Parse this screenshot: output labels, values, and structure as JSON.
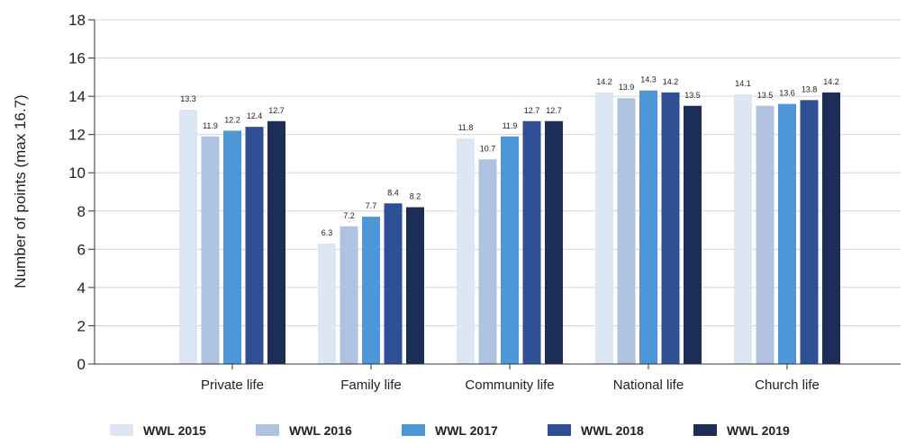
{
  "chart_data": {
    "type": "bar",
    "title": "",
    "xlabel": "",
    "ylabel": "Number of points (max 16.7)",
    "ylim": [
      0,
      18
    ],
    "yticks": [
      0,
      2,
      4,
      6,
      8,
      10,
      12,
      14,
      16,
      18
    ],
    "grid": true,
    "legend_position": "bottom",
    "categories": [
      "Private life",
      "Family life",
      "Community life",
      "National life",
      "Church life"
    ],
    "series": [
      {
        "name": "WWL 2015",
        "color": "#dce6f4",
        "values": [
          13.3,
          6.3,
          11.8,
          14.2,
          14.1
        ],
        "labels": [
          "13.3",
          "6.3",
          "11.8",
          "14.2",
          "14.1"
        ]
      },
      {
        "name": "WWL 2016",
        "color": "#afc3e1",
        "values": [
          11.9,
          7.2,
          10.7,
          13.9,
          13.5
        ],
        "labels": [
          "11.9",
          "7.2",
          "10.7",
          "13.9",
          "13.5"
        ]
      },
      {
        "name": "WWL 2017",
        "color": "#4e97d6",
        "values": [
          12.2,
          7.7,
          11.9,
          14.3,
          13.6
        ],
        "labels": [
          "12.2",
          "7.7",
          "11.9",
          "14.3",
          "13.6"
        ]
      },
      {
        "name": "WWL 2018",
        "color": "#2e4f94",
        "values": [
          12.4,
          8.4,
          12.7,
          14.2,
          13.8
        ],
        "labels": [
          "12.4",
          "8.4",
          "12.7",
          "14.2",
          "13.8"
        ]
      },
      {
        "name": "WWL 2019",
        "color": "#1c2e58",
        "values": [
          12.7,
          8.2,
          12.7,
          13.5,
          14.2
        ],
        "labels": [
          "12.7",
          "8.2",
          "12.7",
          "13.5",
          "14.2"
        ]
      }
    ]
  }
}
